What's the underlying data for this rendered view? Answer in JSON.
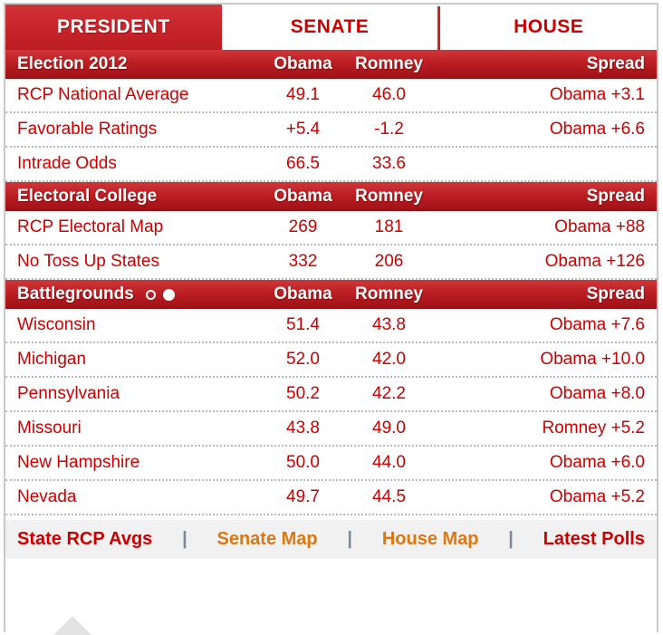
{
  "tabs": [
    {
      "label": "PRESIDENT",
      "active": true
    },
    {
      "label": "SENATE",
      "active": false
    },
    {
      "label": "HOUSE",
      "active": false
    }
  ],
  "columns": {
    "obama": "Obama",
    "romney": "Romney",
    "spread": "Spread"
  },
  "sections": [
    {
      "title": "Election 2012",
      "rows": [
        {
          "label": "RCP National Average",
          "obama": "49.1",
          "romney": "46.0",
          "spread": "Obama +3.1"
        },
        {
          "label": "Favorable Ratings",
          "obama": "+5.4",
          "romney": "-1.2",
          "spread": "Obama +6.6"
        },
        {
          "label": "Intrade Odds",
          "obama": "66.5",
          "romney": "33.6",
          "spread": ""
        }
      ]
    },
    {
      "title": "Electoral College",
      "rows": [
        {
          "label": "RCP Electoral Map",
          "obama": "269",
          "romney": "181",
          "spread": "Obama +88"
        },
        {
          "label": "No Toss Up States",
          "obama": "332",
          "romney": "206",
          "spread": "Obama +126"
        }
      ]
    },
    {
      "title": "Battlegrounds",
      "pagination_dots": [
        "outline",
        "filled"
      ],
      "rows": [
        {
          "label": "Wisconsin",
          "obama": "51.4",
          "romney": "43.8",
          "spread": "Obama +7.6"
        },
        {
          "label": "Michigan",
          "obama": "52.0",
          "romney": "42.0",
          "spread": "Obama +10.0"
        },
        {
          "label": "Pennsylvania",
          "obama": "50.2",
          "romney": "42.2",
          "spread": "Obama +8.0"
        },
        {
          "label": "Missouri",
          "obama": "43.8",
          "romney": "49.0",
          "spread": "Romney +5.2"
        },
        {
          "label": "New Hampshire",
          "obama": "50.0",
          "romney": "44.0",
          "spread": "Obama +6.0"
        },
        {
          "label": "Nevada",
          "obama": "49.7",
          "romney": "44.5",
          "spread": "Obama +5.2"
        }
      ]
    }
  ],
  "footer": {
    "separator": "|",
    "links": [
      {
        "label": "State RCP Avgs",
        "color": "#cc0000"
      },
      {
        "label": "Senate Map",
        "color": "#dd7711"
      },
      {
        "label": "House Map",
        "color": "#dd7711"
      },
      {
        "label": "Latest Polls",
        "color": "#cc0000"
      }
    ]
  },
  "colors": {
    "accent_red": "#c5242a",
    "text_red": "#cc0000",
    "link_orange": "#dd7711",
    "separator_gray": "#7b8a9a",
    "footer_bg": "#f1f1f1",
    "border_gray": "#c9c9c9"
  }
}
